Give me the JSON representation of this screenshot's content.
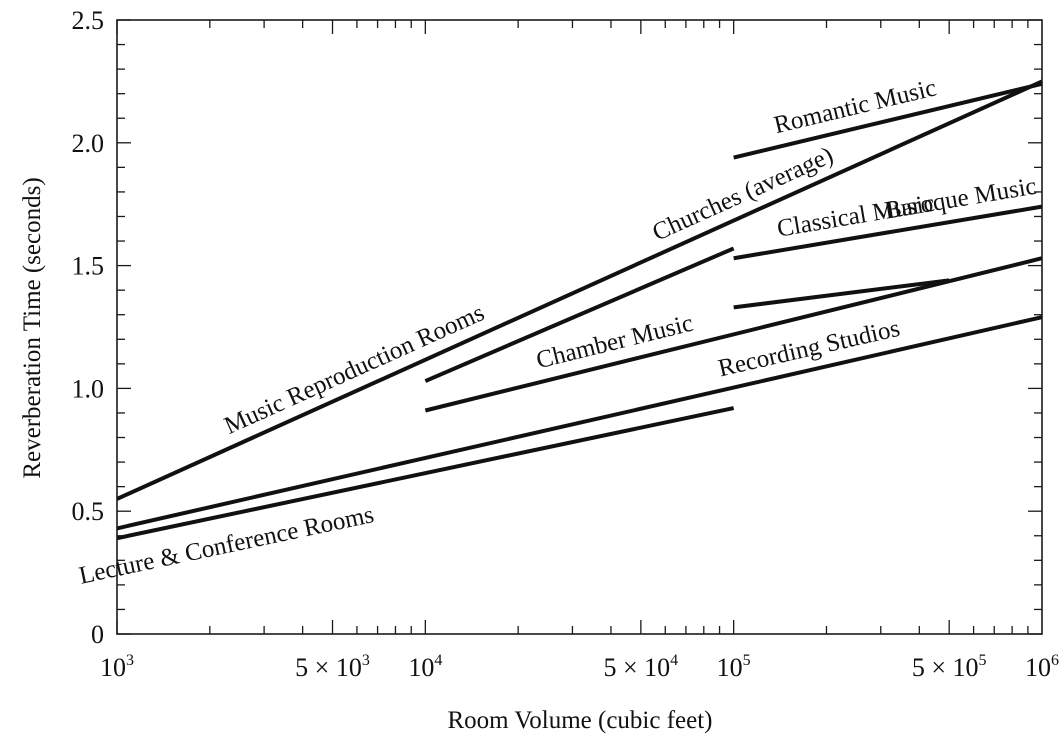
{
  "chart_data": {
    "type": "line",
    "title": "",
    "xlabel": "Room Volume (cubic feet)",
    "ylabel": "Reverberation Time (seconds)",
    "xscale": "log",
    "xlim": [
      1000,
      1000000
    ],
    "ylim": [
      0,
      2.5
    ],
    "grid": false,
    "legend": "none (series labelled directly on lines)",
    "x_ticks": [
      {
        "value": 1000,
        "base": "10",
        "exp": "3"
      },
      {
        "value": 5000,
        "base": "5 × 10",
        "exp": "3"
      },
      {
        "value": 10000,
        "base": "10",
        "exp": "4"
      },
      {
        "value": 50000,
        "base": "5 × 10",
        "exp": "4"
      },
      {
        "value": 100000,
        "base": "10",
        "exp": "5"
      },
      {
        "value": 500000,
        "base": "5 × 10",
        "exp": "5"
      },
      {
        "value": 1000000,
        "base": "10",
        "exp": "6"
      }
    ],
    "y_ticks": [
      {
        "value": 0,
        "label": "0"
      },
      {
        "value": 0.5,
        "label": "0.5"
      },
      {
        "value": 1.0,
        "label": "1.0"
      },
      {
        "value": 1.5,
        "label": "1.5"
      },
      {
        "value": 2.0,
        "label": "2.0"
      },
      {
        "value": 2.5,
        "label": "2.5"
      }
    ],
    "series": [
      {
        "name": "Music Reproduction Rooms",
        "x": [
          1000,
          1000000
        ],
        "y": [
          0.55,
          2.25
        ]
      },
      {
        "name": "Churches (average)",
        "x": [
          10000,
          100000
        ],
        "y": [
          1.03,
          1.57
        ]
      },
      {
        "name": "Romantic Music",
        "x": [
          100000,
          1000000
        ],
        "y": [
          1.94,
          2.24
        ]
      },
      {
        "name": "Classical Music",
        "x": [
          100000,
          1000000
        ],
        "y": [
          1.53,
          1.74
        ]
      },
      {
        "name": "Baroque Music",
        "x": [
          100000,
          500000
        ],
        "y": [
          1.33,
          1.44
        ]
      },
      {
        "name": "Chamber Music",
        "x": [
          10000,
          1000000
        ],
        "y": [
          0.91,
          1.53
        ]
      },
      {
        "name": "Recording Studios",
        "x": [
          1000,
          1000000
        ],
        "y": [
          0.43,
          1.29
        ]
      },
      {
        "name": "Lecture & Conference Rooms",
        "x": [
          1000,
          100000
        ],
        "y": [
          0.39,
          0.92
        ]
      }
    ]
  }
}
